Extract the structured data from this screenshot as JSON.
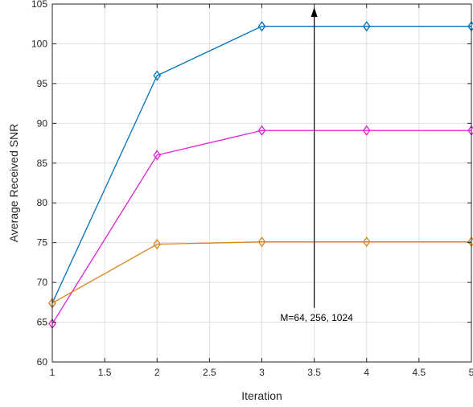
{
  "chart_data": {
    "type": "line",
    "xlabel": "Iteration",
    "ylabel": "Average Received SNR",
    "xlim": [
      1,
      5
    ],
    "ylim": [
      60,
      105
    ],
    "xticks": [
      1,
      1.5,
      2,
      2.5,
      3,
      3.5,
      4,
      4.5,
      5
    ],
    "xtick_labels": [
      "1",
      "1.5",
      "2",
      "2.5",
      "3",
      "3.5",
      "4",
      "4.5",
      "5"
    ],
    "yticks": [
      60,
      65,
      70,
      75,
      80,
      85,
      90,
      95,
      100,
      105
    ],
    "ytick_labels": [
      "60",
      "65",
      "70",
      "75",
      "80",
      "85",
      "90",
      "95",
      "100",
      "105"
    ],
    "grid": true,
    "marker": "diamond",
    "x": [
      1,
      2,
      3,
      4,
      5
    ],
    "series": [
      {
        "color": "#0072BD",
        "values": [
          67.4,
          96.0,
          102.2,
          102.2,
          102.2
        ]
      },
      {
        "color": "#E41FDB",
        "values": [
          64.8,
          86.0,
          89.1,
          89.1,
          89.1
        ]
      },
      {
        "color": "#D9851A",
        "values": [
          67.4,
          74.8,
          75.1,
          75.1,
          75.1
        ]
      }
    ],
    "annotation": {
      "text": "M=64, 256, 1024",
      "arrow_from": [
        3.5,
        66.8
      ],
      "arrow_to": [
        3.5,
        105
      ]
    }
  }
}
